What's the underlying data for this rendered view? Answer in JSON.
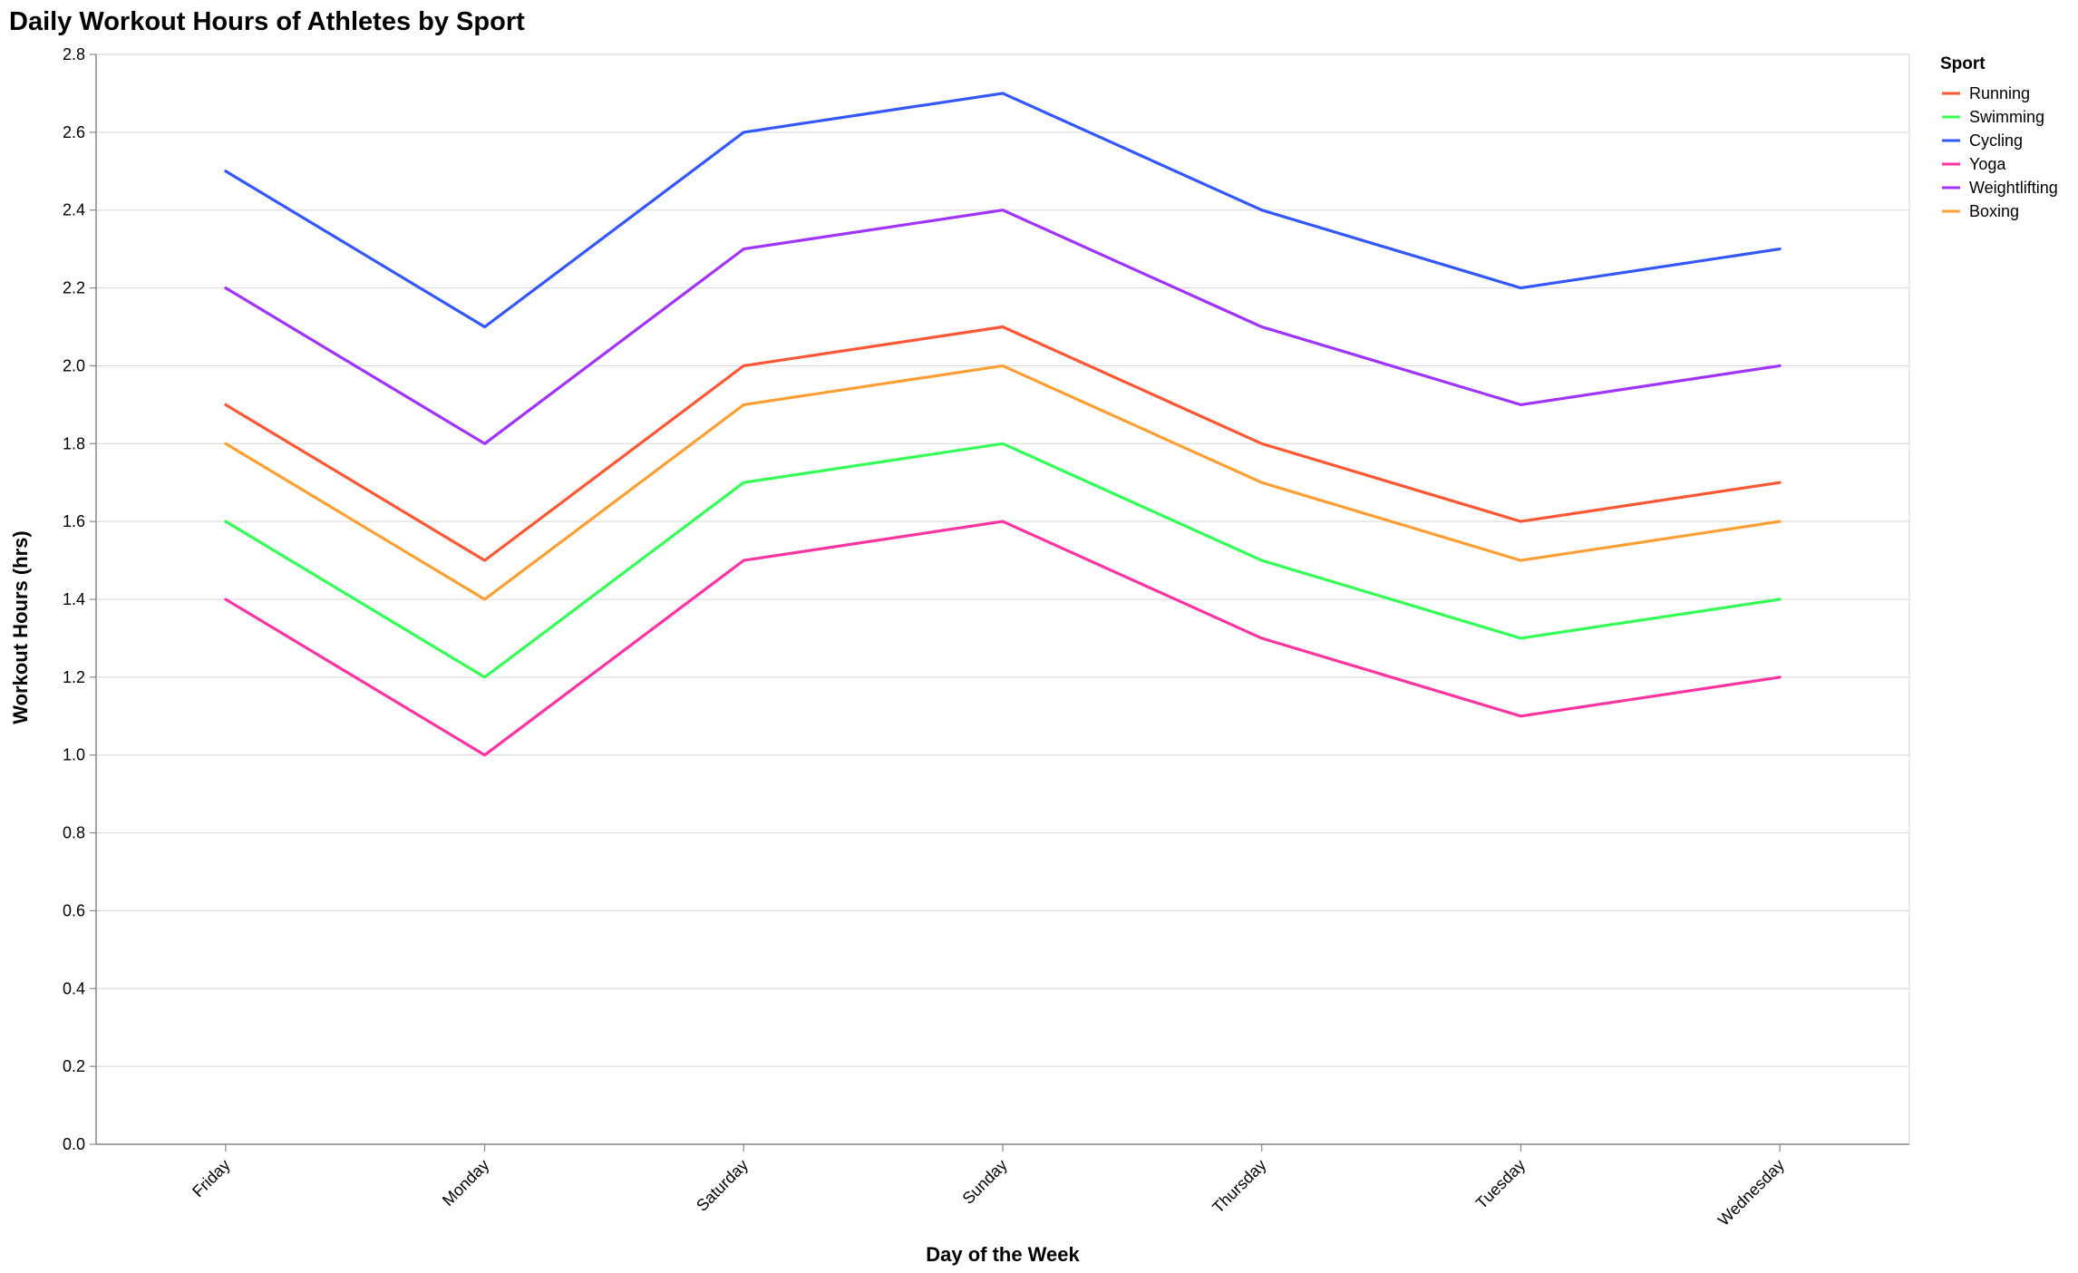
{
  "chart_data": {
    "type": "line",
    "title": "Daily Workout Hours of Athletes by Sport",
    "xlabel": "Day of the Week",
    "ylabel": "Workout Hours (hrs)",
    "categories": [
      "Friday",
      "Monday",
      "Saturday",
      "Sunday",
      "Thursday",
      "Tuesday",
      "Wednesday"
    ],
    "ylim": [
      0,
      2.8
    ],
    "yticks": [
      "0.0",
      "0.2",
      "0.4",
      "0.6",
      "0.8",
      "1.0",
      "1.2",
      "1.4",
      "1.6",
      "1.8",
      "2.0",
      "2.2",
      "2.4",
      "2.6",
      "2.8"
    ],
    "grid": true,
    "legend": {
      "title": "Sport",
      "position": "right"
    },
    "series": [
      {
        "name": "Running",
        "color": "#ff5733",
        "values": [
          1.9,
          1.5,
          2.0,
          2.1,
          1.8,
          1.6,
          1.7
        ]
      },
      {
        "name": "Swimming",
        "color": "#33ff57",
        "values": [
          1.6,
          1.2,
          1.7,
          1.8,
          1.5,
          1.3,
          1.4
        ]
      },
      {
        "name": "Cycling",
        "color": "#3357ff",
        "values": [
          2.5,
          2.1,
          2.6,
          2.7,
          2.4,
          2.2,
          2.3
        ]
      },
      {
        "name": "Yoga",
        "color": "#ff33a1",
        "values": [
          1.4,
          1.0,
          1.5,
          1.6,
          1.3,
          1.1,
          1.2
        ]
      },
      {
        "name": "Weightlifting",
        "color": "#a133ff",
        "values": [
          2.2,
          1.8,
          2.3,
          2.4,
          2.1,
          1.9,
          2.0
        ]
      },
      {
        "name": "Boxing",
        "color": "#ff9f33",
        "values": [
          1.8,
          1.4,
          1.9,
          2.0,
          1.7,
          1.5,
          1.6
        ]
      }
    ]
  }
}
